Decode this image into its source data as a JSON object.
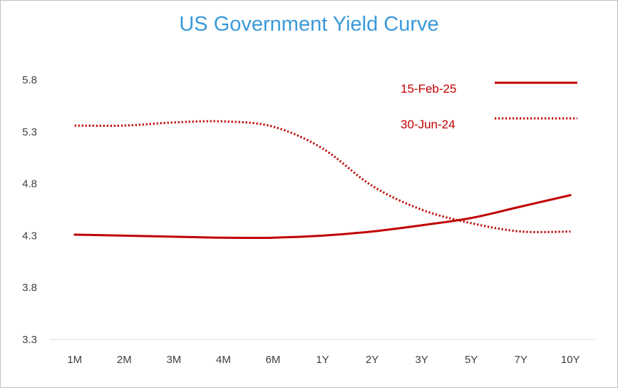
{
  "chart_data": {
    "type": "line",
    "title": "US Government Yield Curve",
    "xlabel": "",
    "ylabel": "",
    "categories": [
      "1M",
      "2M",
      "3M",
      "4M",
      "6M",
      "1Y",
      "2Y",
      "3Y",
      "5Y",
      "7Y",
      "10Y"
    ],
    "ylim": [
      3.3,
      5.8
    ],
    "yticks": [
      "5.8",
      "5.3",
      "4.8",
      "4.3",
      "3.8",
      "3.3"
    ],
    "grid": false,
    "legend_position": "top-right",
    "series": [
      {
        "name": "15-Feb-25",
        "style": "solid",
        "color": "#c00000",
        "values": [
          4.31,
          4.3,
          4.29,
          4.28,
          4.28,
          4.3,
          4.34,
          4.4,
          4.47,
          4.58,
          4.69
        ]
      },
      {
        "name": "30-Jun-24",
        "style": "dotted",
        "color": "#c00000",
        "values": [
          5.36,
          5.36,
          5.39,
          5.4,
          5.35,
          5.14,
          4.78,
          4.55,
          4.42,
          4.34,
          4.34
        ]
      }
    ]
  }
}
